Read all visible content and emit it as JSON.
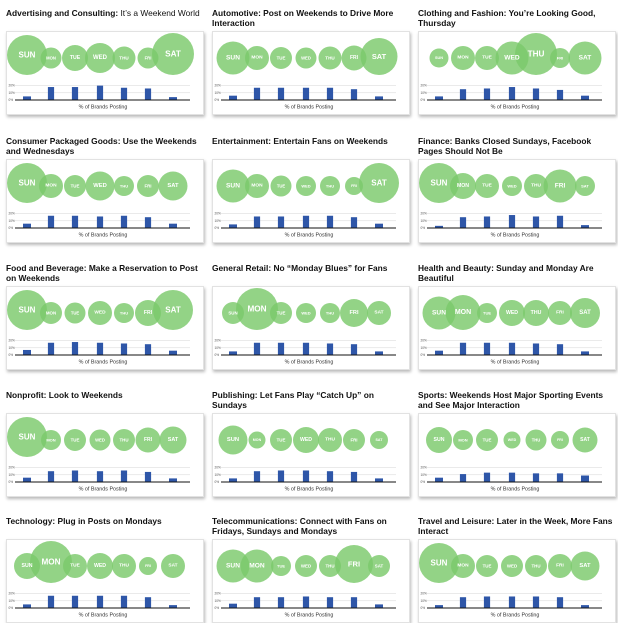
{
  "chart_data": [
    {
      "type": "bar",
      "title": "Advertising and Consulting:",
      "subtitle": "It’s a Weekend World",
      "categories": [
        "SUN",
        "MON",
        "TUE",
        "WED",
        "THU",
        "FRI",
        "SAT"
      ],
      "bubbles": [
        40,
        21,
        26,
        30,
        23,
        21,
        42
      ],
      "values": [
        5,
        18,
        18,
        20,
        17,
        16,
        4
      ],
      "xlabel": "% of Brands Posting",
      "yticks": [
        "20%",
        "10%",
        "0%"
      ],
      "ylim": [
        0,
        25
      ],
      "colors": {
        "bubble": "#7bc96b",
        "bar": "#2e56a8"
      }
    },
    {
      "type": "bar",
      "title": "Automotive: Post on Weekends to Drive More Interaction",
      "categories": [
        "SUN",
        "MON",
        "TUE",
        "WED",
        "THU",
        "FRI",
        "SAT"
      ],
      "bubbles": [
        33,
        24,
        22,
        21,
        23,
        25,
        37
      ],
      "values": [
        6,
        17,
        17,
        17,
        17,
        15,
        5
      ],
      "xlabel": "% of Brands Posting",
      "yticks": [
        "20%",
        "10%",
        "0%"
      ],
      "ylim": [
        0,
        25
      ],
      "colors": {
        "bubble": "#7bc96b",
        "bar": "#2e56a8"
      }
    },
    {
      "type": "bar",
      "title": "Clothing and Fashion: You’re Looking Good, Thursday",
      "categories": [
        "SUN",
        "MON",
        "TUE",
        "WED",
        "THU",
        "FRI",
        "SAT"
      ],
      "bubbles": [
        19,
        24,
        24,
        33,
        42,
        20,
        33
      ],
      "values": [
        5,
        15,
        16,
        18,
        16,
        14,
        6
      ],
      "xlabel": "% of Brands Posting",
      "yticks": [
        "20%",
        "10%",
        "0%"
      ],
      "ylim": [
        0,
        25
      ],
      "colors": {
        "bubble": "#7bc96b",
        "bar": "#2e56a8"
      }
    },
    {
      "type": "bar",
      "title": "Consumer Packaged Goods: Use the Weekends and Wednesdays",
      "categories": [
        "SUN",
        "MON",
        "TUE",
        "WED",
        "THU",
        "FRI",
        "SAT"
      ],
      "bubbles": [
        40,
        24,
        22,
        29,
        20,
        22,
        29
      ],
      "values": [
        6,
        17,
        17,
        16,
        17,
        15,
        6
      ],
      "xlabel": "% of Brands Posting",
      "yticks": [
        "20%",
        "10%",
        "0%"
      ],
      "ylim": [
        0,
        25
      ],
      "colors": {
        "bubble": "#7bc96b",
        "bar": "#2e56a8"
      }
    },
    {
      "type": "bar",
      "title": "Entertainment: Entertain Fans on Weekends",
      "categories": [
        "SUN",
        "MON",
        "TUE",
        "WED",
        "THU",
        "FRI",
        "SAT"
      ],
      "bubbles": [
        33,
        24,
        21,
        20,
        20,
        18,
        40
      ],
      "values": [
        5,
        16,
        16,
        17,
        17,
        15,
        6
      ],
      "xlabel": "% of Brands Posting",
      "yticks": [
        "20%",
        "10%",
        "0%"
      ],
      "ylim": [
        0,
        25
      ],
      "colors": {
        "bubble": "#7bc96b",
        "bar": "#2e56a8"
      }
    },
    {
      "type": "bar",
      "title": "Finance: Banks Closed Sundays, Facebook Pages Should Not Be",
      "categories": [
        "SUN",
        "MON",
        "TUE",
        "WED",
        "THU",
        "FRI",
        "SAT"
      ],
      "bubbles": [
        40,
        26,
        24,
        20,
        24,
        33,
        20
      ],
      "values": [
        3,
        15,
        16,
        18,
        16,
        17,
        4
      ],
      "xlabel": "% of Brands Posting",
      "yticks": [
        "20%",
        "10%",
        "0%"
      ],
      "ylim": [
        0,
        25
      ],
      "colors": {
        "bubble": "#7bc96b",
        "bar": "#2e56a8"
      }
    },
    {
      "type": "bar",
      "title": "Food and Beverage: Make a Reservation to Post on Weekends",
      "categories": [
        "SUN",
        "MON",
        "TUE",
        "WED",
        "THU",
        "FRI",
        "SAT"
      ],
      "bubbles": [
        40,
        22,
        21,
        24,
        20,
        26,
        40
      ],
      "values": [
        7,
        17,
        18,
        17,
        16,
        15,
        6
      ],
      "xlabel": "% of Brands Posting",
      "yticks": [
        "20%",
        "10%",
        "0%"
      ],
      "ylim": [
        0,
        25
      ],
      "colors": {
        "bubble": "#7bc96b",
        "bar": "#2e56a8"
      }
    },
    {
      "type": "bar",
      "title": "General Retail: No “Monday Blues” for Fans",
      "categories": [
        "SUN",
        "MON",
        "TUE",
        "WED",
        "THU",
        "FRI",
        "SAT"
      ],
      "bubbles": [
        22,
        42,
        22,
        20,
        20,
        28,
        24
      ],
      "values": [
        5,
        17,
        17,
        17,
        16,
        15,
        5
      ],
      "xlabel": "% of Brands Posting",
      "yticks": [
        "20%",
        "10%",
        "0%"
      ],
      "ylim": [
        0,
        25
      ],
      "colors": {
        "bubble": "#7bc96b",
        "bar": "#2e56a8"
      }
    },
    {
      "type": "bar",
      "title": "Health and Beauty: Sunday and Monday Are Beautiful",
      "categories": [
        "SUN",
        "MON",
        "TUE",
        "WED",
        "THU",
        "FRI",
        "SAT"
      ],
      "bubbles": [
        33,
        35,
        20,
        26,
        26,
        24,
        30
      ],
      "values": [
        6,
        17,
        17,
        17,
        16,
        15,
        5
      ],
      "xlabel": "% of Brands Posting",
      "yticks": [
        "20%",
        "10%",
        "0%"
      ],
      "ylim": [
        0,
        25
      ],
      "colors": {
        "bubble": "#7bc96b",
        "bar": "#2e56a8"
      }
    },
    {
      "type": "bar",
      "title": "Nonprofit: Look to Weekends",
      "categories": [
        "SUN",
        "MON",
        "TUE",
        "WED",
        "THU",
        "FRI",
        "SAT"
      ],
      "bubbles": [
        40,
        20,
        22,
        21,
        22,
        25,
        27
      ],
      "values": [
        6,
        15,
        16,
        15,
        16,
        14,
        5
      ],
      "xlabel": "% of Brands Posting",
      "yticks": [
        "20%",
        "10%",
        "0%"
      ],
      "ylim": [
        0,
        25
      ],
      "colors": {
        "bubble": "#7bc96b",
        "bar": "#2e56a8"
      }
    },
    {
      "type": "bar",
      "title": "Publishing: Let Fans Play “Catch Up” on Sundays",
      "categories": [
        "SUN",
        "MON",
        "TUE",
        "WED",
        "THU",
        "FRI",
        "SAT"
      ],
      "bubbles": [
        29,
        17,
        22,
        26,
        24,
        22,
        18
      ],
      "values": [
        5,
        15,
        16,
        16,
        15,
        14,
        5
      ],
      "xlabel": "% of Brands Posting",
      "yticks": [
        "20%",
        "10%",
        "0%"
      ],
      "ylim": [
        0,
        25
      ],
      "colors": {
        "bubble": "#7bc96b",
        "bar": "#2e56a8"
      }
    },
    {
      "type": "bar",
      "title": "Sports: Weekends Host Major Sporting Events and See Major Interaction",
      "categories": [
        "SUN",
        "MON",
        "TUE",
        "WED",
        "THU",
        "FRI",
        "SAT"
      ],
      "bubbles": [
        26,
        20,
        22,
        17,
        21,
        18,
        25
      ],
      "values": [
        6,
        11,
        13,
        13,
        12,
        12,
        9
      ],
      "xlabel": "% of Brands Posting",
      "yticks": [
        "20%",
        "10%",
        "0%"
      ],
      "ylim": [
        0,
        25
      ],
      "colors": {
        "bubble": "#7bc96b",
        "bar": "#2e56a8"
      }
    },
    {
      "type": "bar",
      "title": "Technology: Plug in Posts on Mondays",
      "categories": [
        "SUN",
        "MON",
        "TUE",
        "WED",
        "THU",
        "FRI",
        "SAT"
      ],
      "bubbles": [
        26,
        42,
        24,
        26,
        24,
        18,
        24
      ],
      "values": [
        5,
        17,
        17,
        17,
        17,
        15,
        4
      ],
      "xlabel": "% of Brands Posting",
      "yticks": [
        "20%",
        "10%",
        "0%"
      ],
      "ylim": [
        0,
        25
      ],
      "colors": {
        "bubble": "#7bc96b",
        "bar": "#2e56a8"
      }
    },
    {
      "type": "bar",
      "title": "Telecommunications: Connect with Fans on Fridays, Sundays and Mondays",
      "categories": [
        "SUN",
        "MON",
        "TUE",
        "WED",
        "THU",
        "FRI",
        "SAT"
      ],
      "bubbles": [
        33,
        33,
        20,
        22,
        22,
        38,
        22
      ],
      "values": [
        6,
        15,
        15,
        16,
        15,
        15,
        5
      ],
      "xlabel": "% of Brands Posting",
      "yticks": [
        "20%",
        "10%",
        "0%"
      ],
      "ylim": [
        0,
        25
      ],
      "colors": {
        "bubble": "#7bc96b",
        "bar": "#2e56a8"
      }
    },
    {
      "type": "bar",
      "title": "Travel and Leisure: Later in the Week, More Fans Interact",
      "categories": [
        "SUN",
        "MON",
        "TUE",
        "WED",
        "THU",
        "FRI",
        "SAT"
      ],
      "bubbles": [
        40,
        24,
        22,
        22,
        22,
        24,
        29
      ],
      "values": [
        4,
        15,
        16,
        16,
        16,
        15,
        4
      ],
      "xlabel": "% of Brands Posting",
      "yticks": [
        "20%",
        "10%",
        "0%"
      ],
      "ylim": [
        0,
        25
      ],
      "colors": {
        "bubble": "#7bc96b",
        "bar": "#2e56a8"
      }
    }
  ]
}
